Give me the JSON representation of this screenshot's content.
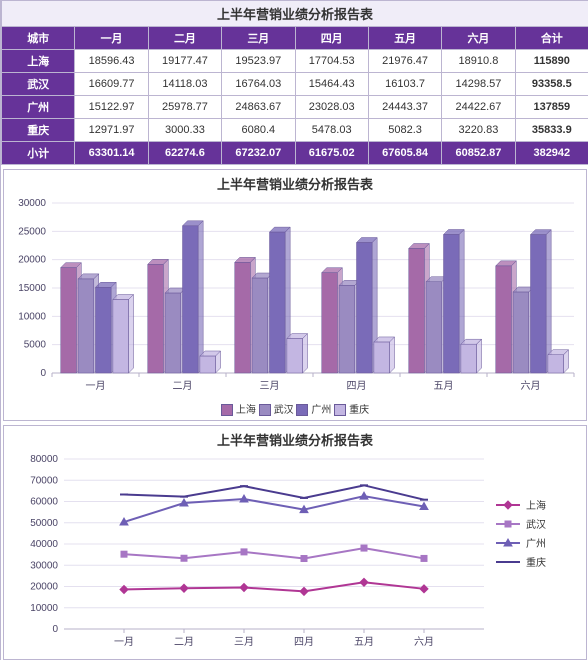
{
  "title": "上半年营销业绩分析报告表",
  "months": [
    "一月",
    "二月",
    "三月",
    "四月",
    "五月",
    "六月"
  ],
  "total_label": "合计",
  "city_label": "城市",
  "subtotal_label": "小计",
  "cities": [
    "上海",
    "武汉",
    "广州",
    "重庆"
  ],
  "data": {
    "上海": [
      18596.43,
      19177.47,
      19523.97,
      17704.53,
      21976.47,
      18910.8
    ],
    "武汉": [
      16609.77,
      14118.03,
      16764.03,
      15464.43,
      16103.7,
      14298.57
    ],
    "广州": [
      15122.97,
      25978.77,
      24863.67,
      23028.03,
      24443.37,
      24422.67
    ],
    "重庆": [
      12971.97,
      3000.33,
      6080.4,
      5478.03,
      5082.3,
      3220.83
    ]
  },
  "row_totals": {
    "上海": "115890",
    "武汉": "93358.5",
    "广州": "137859",
    "重庆": "35833.9"
  },
  "subtotals": [
    "63301.14",
    "62274.6",
    "67232.07",
    "61675.02",
    "67605.84",
    "60852.87"
  ],
  "grand_total": "382942",
  "colors": {
    "header_bg": "#663399",
    "border": "#bcb5d1",
    "grid": "#e4e0ef",
    "series": {
      "上海": "#a56aa8",
      "武汉": "#9a8bc1",
      "广州": "#7a6bb8",
      "重庆": "#c3b6e2"
    },
    "line_series": {
      "上海": "#b03694",
      "武汉": "#a776c4",
      "广州": "#6e5fb5",
      "重庆": "#4a3b8f"
    }
  },
  "bar_chart": {
    "ymin": 0,
    "ymax": 30000,
    "ytick_step": 5000,
    "depth": 5
  },
  "line_chart": {
    "ymin": 0,
    "ymax": 80000,
    "ytick_step": 10000,
    "cumulative": true,
    "legend": [
      "上海",
      "武汉",
      "广州",
      "重庆"
    ]
  }
}
